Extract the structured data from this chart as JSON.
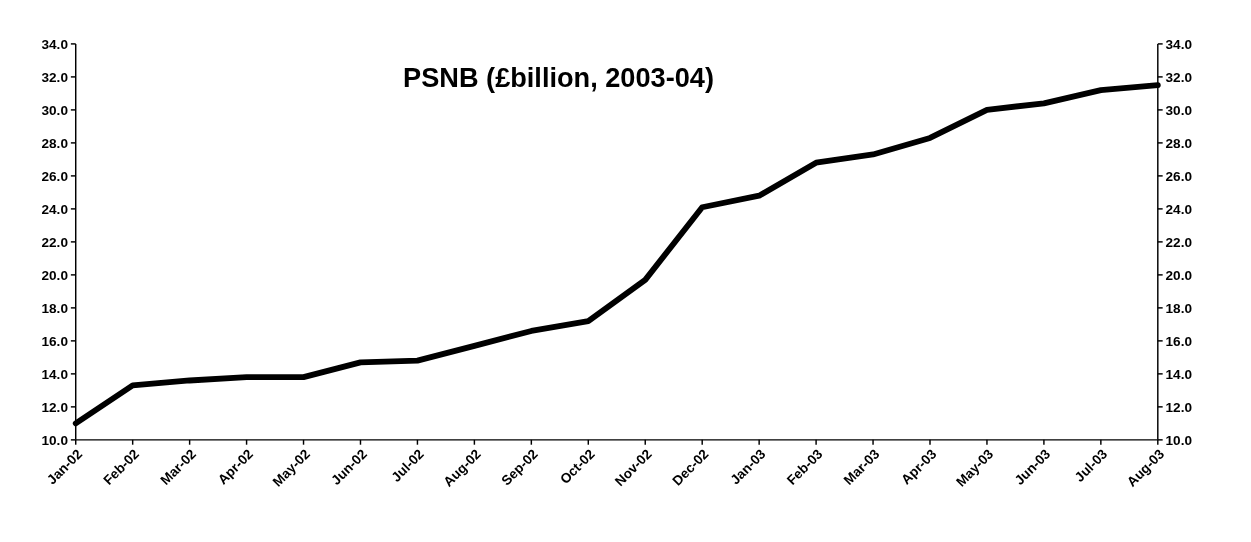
{
  "chart_data": {
    "type": "line",
    "title": "PSNB (£billion, 2003-04)",
    "categories": [
      "Jan-02",
      "Feb-02",
      "Mar-02",
      "Apr-02",
      "May-02",
      "Jun-02",
      "Jul-02",
      "Aug-02",
      "Sep-02",
      "Oct-02",
      "Nov-02",
      "Dec-02",
      "Jan-03",
      "Feb-03",
      "Mar-03",
      "Apr-03",
      "May-03",
      "Jun-03",
      "Jul-03",
      "Aug-03"
    ],
    "series": [
      {
        "color": "#000000",
        "values": [
          11.0,
          13.3,
          13.6,
          13.8,
          13.8,
          14.7,
          14.8,
          15.7,
          16.6,
          17.2,
          19.7,
          24.1,
          24.8,
          26.8,
          27.3,
          28.3,
          30.0,
          30.4,
          31.2,
          31.5
        ]
      }
    ],
    "ylim": [
      10,
      34
    ],
    "yticks": [
      {
        "value": 10,
        "label": "10.0"
      },
      {
        "value": 12,
        "label": "12.0"
      },
      {
        "value": 14,
        "label": "14.0"
      },
      {
        "value": 16,
        "label": "16.0"
      },
      {
        "value": 18,
        "label": "18.0"
      },
      {
        "value": 20,
        "label": "20.0"
      },
      {
        "value": 22,
        "label": "22.0"
      },
      {
        "value": 24,
        "label": "24.0"
      },
      {
        "value": 26,
        "label": "26.0"
      },
      {
        "value": 28,
        "label": "28.0"
      },
      {
        "value": 30,
        "label": "30.0"
      },
      {
        "value": 32,
        "label": "32.0"
      },
      {
        "value": 34,
        "label": "34.0"
      }
    ],
    "y2lim": [
      10,
      34
    ],
    "y2ticks": [
      {
        "value": 10,
        "label": "10.0"
      },
      {
        "value": 12,
        "label": "12.0"
      },
      {
        "value": 14,
        "label": "14.0"
      },
      {
        "value": 16,
        "label": "16.0"
      },
      {
        "value": 18,
        "label": "18.0"
      },
      {
        "value": 20,
        "label": "20.0"
      },
      {
        "value": 22,
        "label": "22.0"
      },
      {
        "value": 24,
        "label": "24.0"
      },
      {
        "value": 26,
        "label": "26.0"
      },
      {
        "value": 28,
        "label": "28.0"
      },
      {
        "value": 30,
        "label": "30.0"
      },
      {
        "value": 32,
        "label": "32.0"
      },
      {
        "value": 34,
        "label": "34.0"
      }
    ],
    "grid": false
  }
}
